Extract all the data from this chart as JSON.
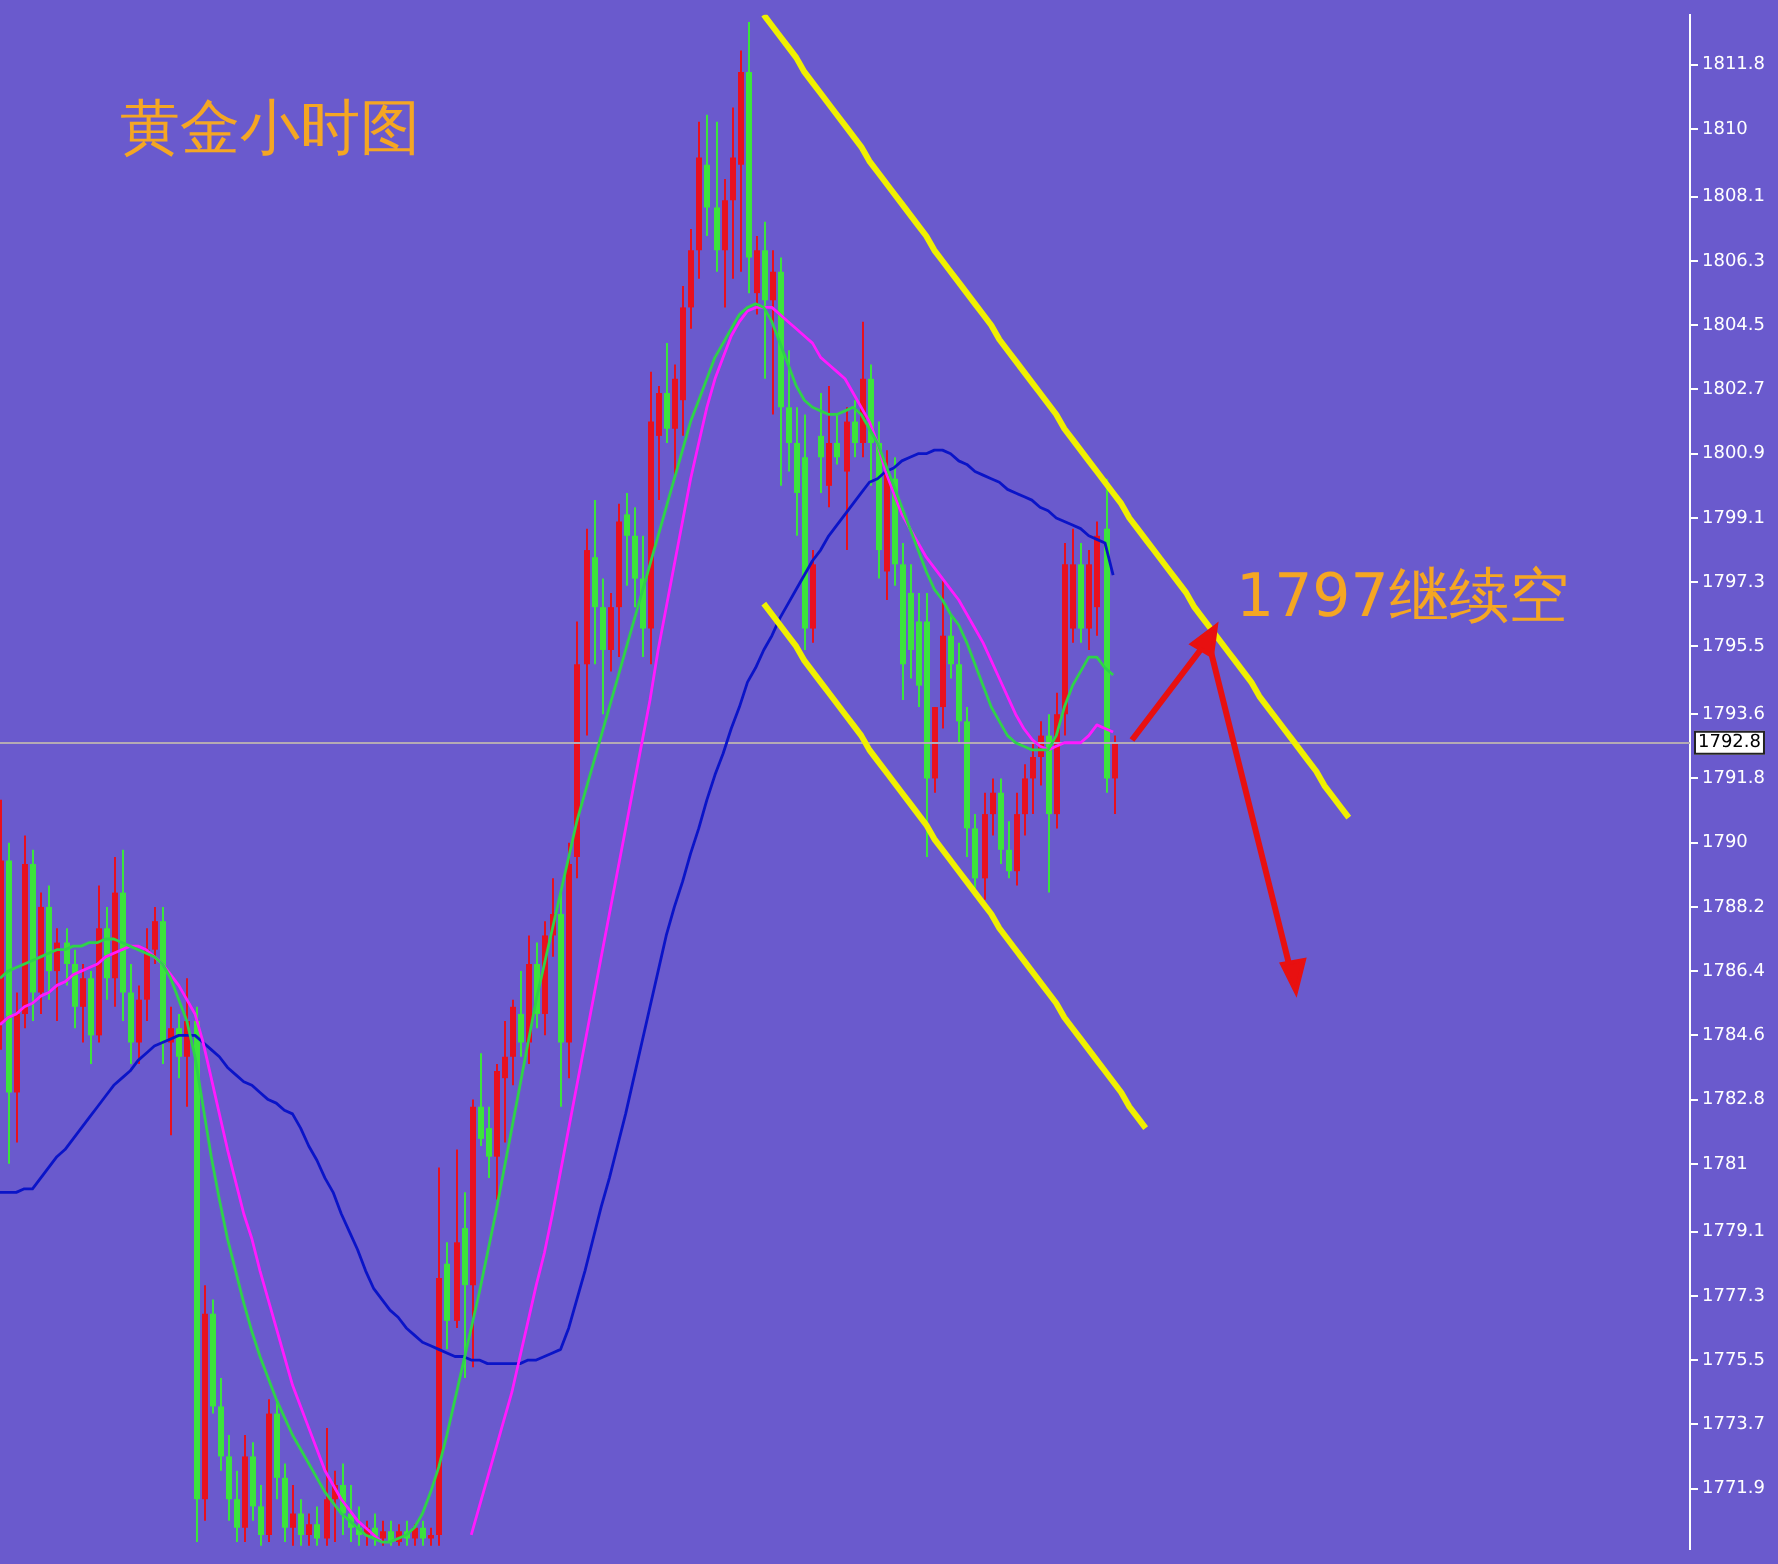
{
  "chart_data": {
    "type": "candlestick",
    "title": "黄金小时图",
    "annotations": [
      "1797继续空"
    ],
    "categories": [
      null,
      null,
      null,
      null,
      null,
      null,
      null,
      null,
      null,
      null,
      null,
      null,
      null,
      null,
      null,
      null,
      null,
      null,
      null,
      null,
      null,
      null,
      null,
      null,
      null,
      null,
      null,
      null,
      null,
      null,
      null,
      null,
      null,
      null,
      null,
      null,
      null,
      null,
      null,
      null,
      null,
      null,
      null,
      null,
      null,
      null,
      null,
      null,
      null,
      null,
      null,
      null,
      null,
      null,
      null,
      null,
      null,
      null,
      null,
      null,
      null,
      null,
      null,
      null,
      null,
      null,
      null,
      null,
      null,
      null,
      null,
      null,
      null,
      null,
      null,
      null,
      null,
      null,
      null,
      null,
      null,
      null,
      null,
      null,
      null,
      null,
      null,
      null,
      null,
      null,
      null,
      null,
      null,
      null,
      null,
      null,
      null,
      null,
      null,
      null,
      null,
      null,
      null,
      null,
      null,
      null,
      null,
      null,
      null,
      null,
      null,
      null,
      null,
      null,
      null,
      null,
      null,
      null,
      null,
      null,
      null,
      null,
      null,
      null,
      null,
      null,
      null,
      null,
      null,
      null,
      null,
      null,
      null,
      null,
      null,
      null,
      null,
      null,
      null,
      null,
      null,
      null,
      null,
      null,
      null,
      null,
      null,
      null,
      null,
      null,
      null,
      null,
      null,
      null,
      null,
      null,
      null,
      null,
      null,
      null,
      null,
      null,
      null,
      null,
      null,
      null,
      null
    ],
    "ohlc": [
      [
        1785.0,
        1791.2,
        1784.2,
        1789.5
      ],
      [
        1789.5,
        1790.0,
        1781.0,
        1783.0
      ],
      [
        1783.0,
        1785.8,
        1781.6,
        1785.2
      ],
      [
        1785.2,
        1790.2,
        1784.8,
        1789.4
      ],
      [
        1789.4,
        1789.8,
        1785.0,
        1785.8
      ],
      [
        1785.8,
        1788.6,
        1785.2,
        1788.2
      ],
      [
        1788.2,
        1788.8,
        1785.6,
        1786.4
      ],
      [
        1786.4,
        1787.6,
        1785.0,
        1787.2
      ],
      [
        1787.2,
        1787.6,
        1786.0,
        1786.6
      ],
      [
        1786.6,
        1787.0,
        1784.8,
        1785.4
      ],
      [
        1785.4,
        1786.6,
        1784.4,
        1786.2
      ],
      [
        1786.2,
        1786.4,
        1783.8,
        1784.6
      ],
      [
        1784.6,
        1788.8,
        1784.4,
        1787.6
      ],
      [
        1787.6,
        1788.2,
        1785.6,
        1786.2
      ],
      [
        1786.2,
        1789.6,
        1785.4,
        1788.6
      ],
      [
        1788.6,
        1789.8,
        1785.0,
        1785.8
      ],
      [
        1785.8,
        1786.6,
        1783.8,
        1784.4
      ],
      [
        1784.4,
        1786.0,
        1783.8,
        1785.6
      ],
      [
        1785.6,
        1787.6,
        1785.0,
        1787.0
      ],
      [
        1787.0,
        1788.2,
        1786.6,
        1787.8
      ],
      [
        1787.8,
        1788.2,
        1783.8,
        1784.4
      ],
      [
        1784.4,
        1785.4,
        1781.8,
        1784.8
      ],
      [
        1784.8,
        1785.2,
        1783.4,
        1784.0
      ],
      [
        1784.0,
        1786.2,
        1782.6,
        1785.0
      ],
      [
        1785.0,
        1785.4,
        1770.4,
        1771.6
      ],
      [
        1771.6,
        1777.6,
        1771.0,
        1776.8
      ],
      [
        1776.8,
        1777.2,
        1774.0,
        1774.2
      ],
      [
        1774.2,
        1775.0,
        1772.4,
        1772.8
      ],
      [
        1772.8,
        1773.4,
        1771.0,
        1771.6
      ],
      [
        1771.6,
        1772.4,
        1770.4,
        1770.8
      ],
      [
        1770.8,
        1773.4,
        1770.4,
        1772.8
      ],
      [
        1772.8,
        1773.2,
        1771.0,
        1771.4
      ],
      [
        1771.4,
        1772.0,
        1770.3,
        1770.6
      ],
      [
        1770.6,
        1774.4,
        1770.4,
        1774.0
      ],
      [
        1774.0,
        1774.4,
        1771.6,
        1772.2
      ],
      [
        1772.2,
        1772.6,
        1770.4,
        1770.8
      ],
      [
        1770.8,
        1772.0,
        1770.3,
        1771.2
      ],
      [
        1771.2,
        1771.6,
        1770.3,
        1770.6
      ],
      [
        1770.6,
        1771.2,
        1770.3,
        1770.9
      ],
      [
        1770.9,
        1771.4,
        1770.3,
        1770.5
      ],
      [
        1770.5,
        1773.6,
        1770.3,
        1771.6
      ],
      [
        1771.6,
        1772.4,
        1770.4,
        1772.0
      ],
      [
        1772.0,
        1772.6,
        1770.6,
        1771.2
      ],
      [
        1771.2,
        1772.0,
        1770.4,
        1770.8
      ],
      [
        1770.8,
        1771.4,
        1770.3,
        1770.6
      ],
      [
        1770.6,
        1771.0,
        1770.3,
        1770.8
      ],
      [
        1770.8,
        1771.2,
        1770.3,
        1770.5
      ],
      [
        1770.5,
        1771.0,
        1770.3,
        1770.7
      ],
      [
        1770.7,
        1771.0,
        1770.3,
        1770.4
      ],
      [
        1770.4,
        1770.9,
        1770.3,
        1770.7
      ],
      [
        1770.7,
        1771.0,
        1770.3,
        1770.5
      ],
      [
        1770.5,
        1770.9,
        1770.3,
        1770.8
      ],
      [
        1770.8,
        1771.0,
        1770.3,
        1770.5
      ],
      [
        1770.5,
        1770.8,
        1770.3,
        1770.6
      ],
      [
        1770.6,
        1780.9,
        1770.3,
        1777.8
      ],
      [
        1778.2,
        1778.8,
        1775.8,
        1776.6
      ],
      [
        1776.6,
        1781.4,
        1776.4,
        1778.8
      ],
      [
        1779.2,
        1780.2,
        1775.0,
        1777.6
      ],
      [
        1777.6,
        1782.8,
        1775.3,
        1782.6
      ],
      [
        1782.6,
        1784.1,
        1781.5,
        1781.7
      ],
      [
        1782.0,
        1782.6,
        1780.6,
        1781.2
      ],
      [
        1781.2,
        1783.8,
        1780.0,
        1783.6
      ],
      [
        1783.4,
        1785.0,
        1781.6,
        1784.0
      ],
      [
        1784.0,
        1785.6,
        1783.2,
        1785.4
      ],
      [
        1785.2,
        1786.4,
        1784.0,
        1784.4
      ],
      [
        1784.4,
        1787.4,
        1783.8,
        1786.6
      ],
      [
        1786.6,
        1787.2,
        1784.8,
        1785.2
      ],
      [
        1785.2,
        1787.8,
        1784.6,
        1787.4
      ],
      [
        1787.4,
        1789.0,
        1786.8,
        1788.0
      ],
      [
        1788.0,
        1788.6,
        1782.6,
        1784.4
      ],
      [
        1784.4,
        1790.0,
        1783.4,
        1789.4
      ],
      [
        1789.6,
        1796.2,
        1789.0,
        1795.0
      ],
      [
        1795.0,
        1798.8,
        1793.0,
        1798.2
      ],
      [
        1798.0,
        1799.6,
        1795.0,
        1796.6
      ],
      [
        1796.6,
        1797.4,
        1793.6,
        1795.4
      ],
      [
        1795.4,
        1797.0,
        1794.8,
        1796.6
      ],
      [
        1796.6,
        1799.5,
        1795.2,
        1799.0
      ],
      [
        1799.2,
        1799.8,
        1797.2,
        1798.6
      ],
      [
        1798.6,
        1799.4,
        1796.6,
        1797.4
      ],
      [
        1797.4,
        1798.6,
        1795.2,
        1796.0
      ],
      [
        1796.0,
        1803.2,
        1795.0,
        1801.8
      ],
      [
        1801.4,
        1802.8,
        1799.6,
        1802.6
      ],
      [
        1802.6,
        1804.0,
        1801.2,
        1801.6
      ],
      [
        1801.6,
        1803.4,
        1800.2,
        1803.0
      ],
      [
        1802.4,
        1805.6,
        1801.4,
        1805.0
      ],
      [
        1805.0,
        1807.2,
        1804.4,
        1806.6
      ],
      [
        1806.6,
        1810.2,
        1805.8,
        1809.2
      ],
      [
        1809.0,
        1810.4,
        1807.0,
        1807.8
      ],
      [
        1807.8,
        1810.2,
        1806.0,
        1806.6
      ],
      [
        1806.6,
        1808.6,
        1805.0,
        1808.0
      ],
      [
        1808.0,
        1810.6,
        1805.8,
        1809.2
      ],
      [
        1809.0,
        1812.2,
        1806.0,
        1811.6
      ],
      [
        1811.6,
        1813.0,
        1805.4,
        1806.4
      ],
      [
        1805.4,
        1807.0,
        1804.8,
        1806.6
      ],
      [
        1806.6,
        1807.4,
        1803.0,
        1805.2
      ],
      [
        1805.2,
        1806.6,
        1802.0,
        1806.0
      ],
      [
        1806.0,
        1806.4,
        1800.0,
        1802.2
      ],
      [
        1802.2,
        1803.8,
        1800.4,
        1801.2
      ],
      [
        1801.2,
        1802.2,
        1798.6,
        1799.8
      ],
      [
        1800.8,
        1802.0,
        1795.4,
        1796.0
      ],
      [
        1796.0,
        1798.2,
        1795.6,
        1797.8
      ],
      [
        1801.4,
        1802.6,
        1799.8,
        1800.8
      ],
      [
        1800.0,
        1802.8,
        1799.4,
        1801.2
      ],
      [
        1801.2,
        1802.0,
        1800.6,
        1800.8
      ],
      [
        1800.4,
        1802.2,
        1798.2,
        1801.8
      ],
      [
        1801.8,
        1802.4,
        1800.8,
        1801.2
      ],
      [
        1801.2,
        1804.6,
        1800.8,
        1803.0
      ],
      [
        1803.0,
        1803.4,
        1800.0,
        1801.2
      ],
      [
        1801.2,
        1801.8,
        1797.4,
        1798.2
      ],
      [
        1797.6,
        1801.0,
        1796.8,
        1800.4
      ],
      [
        1800.2,
        1800.8,
        1797.2,
        1797.8
      ],
      [
        1797.8,
        1798.4,
        1794.0,
        1795.0
      ],
      [
        1797.0,
        1797.8,
        1794.6,
        1795.4
      ],
      [
        1796.2,
        1797.0,
        1793.8,
        1794.4
      ],
      [
        1796.2,
        1797.0,
        1789.6,
        1791.8
      ],
      [
        1791.8,
        1793.8,
        1791.4,
        1793.8
      ],
      [
        1793.8,
        1797.4,
        1793.2,
        1795.8
      ],
      [
        1795.8,
        1796.4,
        1794.6,
        1795.0
      ],
      [
        1795.0,
        1795.6,
        1792.8,
        1793.4
      ],
      [
        1793.4,
        1793.8,
        1789.6,
        1790.4
      ],
      [
        1790.4,
        1790.8,
        1788.6,
        1789.0
      ],
      [
        1789.0,
        1791.4,
        1788.4,
        1790.8
      ],
      [
        1790.8,
        1791.8,
        1790.2,
        1791.4
      ],
      [
        1791.4,
        1791.8,
        1789.4,
        1789.8
      ],
      [
        1789.8,
        1790.6,
        1789.0,
        1789.2
      ],
      [
        1789.2,
        1791.4,
        1788.8,
        1790.8
      ],
      [
        1790.8,
        1792.2,
        1790.2,
        1791.8
      ],
      [
        1791.8,
        1792.8,
        1790.8,
        1792.4
      ],
      [
        1792.4,
        1793.4,
        1791.6,
        1793.0
      ],
      [
        1793.0,
        1793.6,
        1788.6,
        1790.8
      ],
      [
        1790.8,
        1794.2,
        1790.4,
        1793.6
      ],
      [
        1793.6,
        1798.4,
        1793.0,
        1797.8
      ],
      [
        1796.0,
        1798.8,
        1795.6,
        1797.8
      ],
      [
        1797.8,
        1798.4,
        1795.6,
        1796.0
      ],
      [
        1796.0,
        1798.2,
        1795.4,
        1797.8
      ],
      [
        1796.6,
        1799.0,
        1795.8,
        1798.6
      ],
      [
        1798.8,
        1800.2,
        1791.4,
        1791.8
      ],
      [
        1791.8,
        1793.0,
        1790.8,
        1792.8
      ],
      null,
      null,
      null,
      null,
      null,
      null,
      null,
      null,
      null,
      null,
      null,
      null,
      null,
      null,
      null,
      null,
      null,
      null,
      null,
      null,
      null,
      null,
      null,
      null,
      null,
      null,
      null,
      null,
      null
    ],
    "colors": [
      "#e8101e",
      "#3ce43c",
      "#e8101e",
      "#e8101e",
      "#3ce43c",
      "#e8101e",
      "#3ce43c",
      "#e8101e",
      "#3ce43c",
      "#3ce43c",
      "#e8101e",
      "#3ce43c",
      "#e8101e",
      "#3ce43c",
      "#e8101e",
      "#3ce43c",
      "#3ce43c",
      "#e8101e",
      "#e8101e",
      "#e8101e",
      "#3ce43c",
      "#e8101e",
      "#3ce43c",
      "#e8101e",
      "#3ce43c",
      "#e8101e",
      "#3ce43c",
      "#3ce43c",
      "#3ce43c",
      "#3ce43c",
      "#e8101e",
      "#3ce43c",
      "#3ce43c",
      "#e8101e",
      "#3ce43c",
      "#3ce43c",
      "#e8101e",
      "#3ce43c",
      "#e8101e",
      "#3ce43c",
      "#e8101e",
      "#e8101e",
      "#3ce43c",
      "#3ce43c",
      "#3ce43c",
      "#e8101e",
      "#3ce43c",
      "#e8101e",
      "#3ce43c",
      "#e8101e",
      "#3ce43c",
      "#e8101e",
      "#3ce43c",
      "#e8101e",
      "#e8101e",
      "#3ce43c",
      "#e8101e",
      "#3ce43c",
      "#e8101e",
      "#3ce43c",
      "#3ce43c",
      "#e8101e",
      "#e8101e",
      "#e8101e",
      "#3ce43c",
      "#e8101e",
      "#3ce43c",
      "#e8101e",
      "#e8101e",
      "#3ce43c",
      "#e8101e",
      "#e8101e",
      "#e8101e",
      "#3ce43c",
      "#3ce43c",
      "#e8101e",
      "#e8101e",
      "#3ce43c",
      "#3ce43c",
      "#3ce43c",
      "#e8101e",
      "#e8101e",
      "#3ce43c",
      "#e8101e",
      "#e8101e",
      "#e8101e",
      "#e8101e",
      "#3ce43c",
      "#3ce43c",
      "#e8101e",
      "#e8101e",
      "#e8101e",
      "#3ce43c",
      "#e8101e",
      "#3ce43c",
      "#e8101e",
      "#3ce43c",
      "#3ce43c",
      "#3ce43c",
      "#3ce43c",
      "#e8101e",
      "#3ce43c",
      "#e8101e",
      "#3ce43c",
      "#e8101e",
      "#3ce43c",
      "#e8101e",
      "#3ce43c",
      "#3ce43c",
      "#e8101e",
      "#3ce43c",
      "#3ce43c",
      "#3ce43c",
      "#3ce43c",
      "#3ce43c",
      "#e8101e",
      "#e8101e",
      "#3ce43c",
      "#3ce43c",
      "#3ce43c",
      "#3ce43c",
      "#e8101e",
      "#e8101e",
      "#3ce43c",
      "#3ce43c",
      "#e8101e",
      "#e8101e",
      "#e8101e",
      "#e8101e",
      "#3ce43c",
      "#e8101e",
      "#e8101e",
      "#e8101e",
      "#3ce43c",
      "#e8101e",
      "#e8101e",
      "#3ce43c",
      "#e8101e",
      null,
      null,
      null,
      null,
      null,
      null,
      null,
      null,
      null,
      null,
      null,
      null,
      null,
      null,
      null,
      null,
      null,
      null,
      null,
      null,
      null,
      null,
      null,
      null,
      null,
      null,
      null,
      null,
      null
    ],
    "series": [
      {
        "type": "line",
        "color": "#f0f000",
        "values": [
          null,
          null,
          null,
          null,
          null,
          null,
          null,
          null,
          null,
          null,
          null,
          null,
          null,
          null,
          null,
          null,
          null,
          null,
          null,
          null,
          null,
          null,
          null,
          null,
          null,
          null,
          null,
          null,
          null,
          null,
          null,
          null,
          null,
          null,
          null,
          null,
          null,
          null,
          null,
          null,
          null,
          null,
          null,
          null,
          null,
          null,
          null,
          null,
          null,
          null,
          null,
          null,
          null,
          null,
          null,
          null,
          null,
          null,
          null,
          null,
          null,
          null,
          null,
          null,
          null,
          null,
          null,
          null,
          null,
          null,
          null,
          null,
          null,
          null,
          null,
          null,
          null,
          null,
          null,
          null,
          null,
          null,
          null,
          null,
          null,
          null,
          null,
          null,
          null,
          null,
          null,
          null,
          null,
          null,
          1813.2,
          1812.9,
          1812.6,
          1812.3,
          1812.0,
          1811.6,
          1811.3,
          1811.0,
          1810.7,
          1810.4,
          1810.1,
          1809.8,
          1809.5,
          1809.1,
          1808.8,
          1808.5,
          1808.2,
          1807.9,
          1807.6,
          1807.3,
          1807.0,
          1806.6,
          1806.3,
          1806.0,
          1805.7,
          1805.4,
          1805.1,
          1804.8,
          1804.5,
          1804.1,
          1803.8,
          1803.5,
          1803.2,
          1802.9,
          1802.6,
          1802.3,
          1802.0,
          1801.6,
          1801.3,
          1801.0,
          1800.7,
          1800.4,
          1800.1,
          1799.8,
          1799.5,
          1799.1,
          1798.8,
          1798.5,
          1798.2,
          1797.9,
          1797.6,
          1797.3,
          1797.0,
          1796.6,
          1796.3,
          1796.0,
          1795.7,
          1795.4,
          1795.1,
          1794.8,
          1794.5,
          1794.1,
          1793.8,
          1793.5,
          1793.2,
          1792.9,
          1792.6,
          1792.3,
          1792.0,
          1791.6,
          1791.3,
          1791.0,
          1790.7
        ]
      },
      {
        "type": "line",
        "color": "#f0f000",
        "values": [
          null,
          null,
          null,
          null,
          null,
          null,
          null,
          null,
          null,
          null,
          null,
          null,
          null,
          null,
          null,
          null,
          null,
          null,
          null,
          null,
          null,
          null,
          null,
          null,
          null,
          null,
          null,
          null,
          null,
          null,
          null,
          null,
          null,
          null,
          null,
          null,
          null,
          null,
          null,
          null,
          null,
          null,
          null,
          null,
          null,
          null,
          null,
          null,
          null,
          null,
          null,
          null,
          null,
          null,
          null,
          null,
          null,
          null,
          null,
          null,
          null,
          null,
          null,
          null,
          null,
          null,
          null,
          null,
          null,
          null,
          null,
          null,
          null,
          null,
          null,
          null,
          null,
          null,
          null,
          null,
          null,
          null,
          null,
          null,
          null,
          null,
          null,
          null,
          null,
          null,
          null,
          null,
          null,
          null,
          1796.7,
          1796.4,
          1796.1,
          1795.8,
          1795.5,
          1795.1,
          1794.8,
          1794.5,
          1794.2,
          1793.9,
          1793.6,
          1793.3,
          1793.0,
          1792.6,
          1792.3,
          1792.0,
          1791.7,
          1791.4,
          1791.1,
          1790.8,
          1790.5,
          1790.1,
          1789.8,
          1789.5,
          1789.2,
          1788.9,
          1788.6,
          1788.3,
          1788.0,
          1787.6,
          1787.3,
          1787.0,
          1786.7,
          1786.4,
          1786.1,
          1785.8,
          1785.5,
          1785.1,
          1784.8,
          1784.5,
          1784.2,
          1783.9,
          1783.6,
          1783.3,
          1783.0,
          1782.6,
          1782.3,
          1782.0,
          null,
          null,
          null,
          null,
          null,
          null,
          null,
          null,
          null,
          null,
          null,
          null,
          null,
          null,
          null,
          null,
          null,
          null,
          null,
          null,
          null,
          null,
          null,
          null,
          null
        ]
      },
      {
        "type": "line",
        "color": "#2fd24a",
        "values": [
          1786.2,
          1786.4,
          1786.5,
          1786.6,
          1786.7,
          1786.8,
          1786.9,
          1787.0,
          1787.0,
          1787.1,
          1787.1,
          1787.2,
          1787.2,
          1787.3,
          1787.3,
          1787.2,
          1787.1,
          1787.0,
          1786.9,
          1786.8,
          1786.6,
          1786.2,
          1785.6,
          1785.0,
          1784.0,
          1782.6,
          1781.2,
          1780.0,
          1778.9,
          1778.0,
          1777.1,
          1776.3,
          1775.6,
          1775.0,
          1774.4,
          1773.9,
          1773.4,
          1773.0,
          1772.6,
          1772.2,
          1771.8,
          1771.5,
          1771.2,
          1771.0,
          1770.8,
          1770.6,
          1770.5,
          1770.4,
          1770.4,
          1770.5,
          1770.6,
          1770.8,
          1771.2,
          1771.8,
          1772.5,
          1773.4,
          1774.4,
          1775.4,
          1776.4,
          1777.4,
          1778.5,
          1779.6,
          1780.8,
          1782.0,
          1783.2,
          1784.4,
          1785.6,
          1786.6,
          1787.6,
          1788.6,
          1789.6,
          1790.6,
          1791.4,
          1792.2,
          1793.0,
          1793.8,
          1794.6,
          1795.4,
          1796.2,
          1797.0,
          1797.8,
          1798.6,
          1799.4,
          1800.2,
          1801.0,
          1801.8,
          1802.4,
          1803.0,
          1803.6,
          1804.0,
          1804.4,
          1804.8,
          1805.0,
          1805.1,
          1805.0,
          1804.6,
          1804.0,
          1803.4,
          1802.8,
          1802.4,
          1802.2,
          1802.1,
          1802.0,
          1802.0,
          1802.1,
          1802.2,
          1802.0,
          1801.6,
          1801.2,
          1800.6,
          1800.0,
          1799.4,
          1798.8,
          1798.2,
          1797.6,
          1797.1,
          1796.8,
          1796.4,
          1796.1,
          1795.6,
          1795.0,
          1794.4,
          1793.8,
          1793.4,
          1793.0,
          1792.8,
          1792.7,
          1792.6,
          1792.6,
          1792.6,
          1793.0,
          1793.8,
          1794.4,
          1794.8,
          1795.2,
          1795.2,
          1794.9,
          1794.7,
          null,
          null,
          null,
          null,
          null,
          null,
          null,
          null,
          null,
          null,
          null,
          null,
          null,
          null,
          null,
          null,
          null,
          null,
          null,
          null,
          null,
          null,
          null,
          null,
          null,
          null,
          null,
          null,
          null
        ]
      },
      {
        "type": "line",
        "color": "#ff1aff",
        "values": [
          1784.9,
          1785.1,
          1785.2,
          1785.4,
          1785.5,
          1785.7,
          1785.8,
          1786.0,
          1786.1,
          1786.3,
          1786.4,
          1786.5,
          1786.6,
          1786.8,
          1786.9,
          1787.0,
          1787.1,
          1787.1,
          1787.0,
          1786.8,
          1786.6,
          1786.3,
          1786.0,
          1785.6,
          1785.2,
          1784.4,
          1783.4,
          1782.4,
          1781.4,
          1780.5,
          1779.6,
          1778.9,
          1778.0,
          1777.2,
          1776.4,
          1775.6,
          1774.8,
          1774.2,
          1773.6,
          1773.0,
          1772.4,
          1772.0,
          1771.6,
          1771.3,
          1771.0,
          1770.8,
          1770.6,
          1770.4,
          null,
          null,
          null,
          null,
          null,
          null,
          null,
          null,
          null,
          null,
          1770.6,
          1771.4,
          1772.2,
          1773.0,
          1773.8,
          1774.6,
          1775.6,
          1776.6,
          1777.6,
          1778.5,
          1779.6,
          1780.8,
          1782.0,
          1783.2,
          1784.4,
          1785.6,
          1786.8,
          1788.0,
          1789.2,
          1790.4,
          1791.6,
          1792.8,
          1794.0,
          1795.4,
          1796.6,
          1797.8,
          1799.0,
          1800.2,
          1801.2,
          1802.2,
          1803.0,
          1803.6,
          1804.2,
          1804.6,
          1804.9,
          1805.0,
          1805.0,
          1805.0,
          1804.8,
          1804.6,
          1804.4,
          1804.2,
          1804.0,
          1803.6,
          1803.4,
          1803.2,
          1803.0,
          1802.6,
          1802.2,
          1801.8,
          1801.2,
          1800.4,
          1799.8,
          1799.2,
          1798.8,
          1798.4,
          1798.0,
          1797.7,
          1797.4,
          1797.1,
          1796.8,
          1796.4,
          1796.0,
          1795.6,
          1795.1,
          1794.6,
          1794.1,
          1793.6,
          1793.2,
          1792.9,
          1792.7,
          1792.6,
          1792.7,
          1792.8,
          1792.8,
          1792.8,
          1793.0,
          1793.3,
          1793.2,
          1793.1,
          null,
          null,
          null,
          null,
          null,
          null,
          null,
          null,
          null,
          null,
          null,
          null,
          null,
          null,
          null,
          null,
          null,
          null,
          null,
          null,
          null,
          null,
          null,
          null,
          null,
          null,
          null,
          null,
          null
        ]
      },
      {
        "type": "line",
        "color": "#0a14c8",
        "values": [
          1780.2,
          1780.2,
          1780.2,
          1780.3,
          1780.3,
          1780.6,
          1780.9,
          1781.2,
          1781.4,
          1781.7,
          1782.0,
          1782.3,
          1782.6,
          1782.9,
          1783.2,
          1783.4,
          1783.6,
          1783.9,
          1784.1,
          1784.3,
          1784.4,
          1784.5,
          1784.6,
          1784.6,
          1784.6,
          1784.4,
          1784.2,
          1784.0,
          1783.7,
          1783.5,
          1783.3,
          1783.2,
          1783.0,
          1782.8,
          1782.7,
          1782.5,
          1782.4,
          1782.0,
          1781.5,
          1781.1,
          1780.6,
          1780.2,
          1779.6,
          1779.1,
          1778.6,
          1778.0,
          1777.5,
          1777.2,
          1776.9,
          1776.7,
          1776.4,
          1776.2,
          1776.0,
          1775.9,
          1775.8,
          1775.7,
          1775.6,
          1775.6,
          1775.5,
          1775.5,
          1775.4,
          1775.4,
          1775.4,
          1775.4,
          1775.4,
          1775.5,
          1775.5,
          1775.6,
          1775.7,
          1775.8,
          1776.4,
          1777.2,
          1778.0,
          1778.9,
          1779.8,
          1780.6,
          1781.5,
          1782.4,
          1783.4,
          1784.4,
          1785.4,
          1786.4,
          1787.4,
          1788.2,
          1788.9,
          1789.7,
          1790.4,
          1791.2,
          1791.9,
          1792.5,
          1793.2,
          1793.8,
          1794.5,
          1794.9,
          1795.4,
          1795.8,
          1796.3,
          1796.7,
          1797.1,
          1797.5,
          1797.9,
          1798.2,
          1798.6,
          1798.9,
          1799.2,
          1799.5,
          1799.8,
          1800.1,
          1800.2,
          1800.4,
          1800.5,
          1800.7,
          1800.8,
          1800.9,
          1800.9,
          1801.0,
          1801.0,
          1800.9,
          1800.7,
          1800.6,
          1800.4,
          1800.3,
          1800.2,
          1800.1,
          1799.9,
          1799.8,
          1799.7,
          1799.6,
          1799.4,
          1799.3,
          1799.1,
          1799.0,
          1798.9,
          1798.8,
          1798.6,
          1798.5,
          1798.4,
          1797.5,
          null,
          null,
          null,
          null,
          null,
          null,
          null,
          null,
          null,
          null,
          null,
          null,
          null,
          null,
          null,
          null,
          null,
          null,
          null,
          null,
          null,
          null,
          null,
          null,
          null,
          null,
          null,
          null,
          null
        ]
      }
    ],
    "ylim": [
      1770.2,
      1813.2
    ],
    "yticks": [
      1811.8,
      1810.0,
      1808.1,
      1806.3,
      1804.5,
      1802.7,
      1800.9,
      1799.1,
      1797.3,
      1795.5,
      1793.6,
      1791.8,
      1790.0,
      1788.2,
      1786.4,
      1784.6,
      1782.8,
      1781.0,
      1779.1,
      1777.3,
      1775.5,
      1773.7,
      1771.9
    ],
    "ref_lines": [
      {
        "axis": "y",
        "value": 1792.8,
        "label": "1792.8",
        "color": "#b4aab4"
      }
    ],
    "tick_labels": "y",
    "grid": false,
    "legend": false,
    "marker": "none"
  }
}
